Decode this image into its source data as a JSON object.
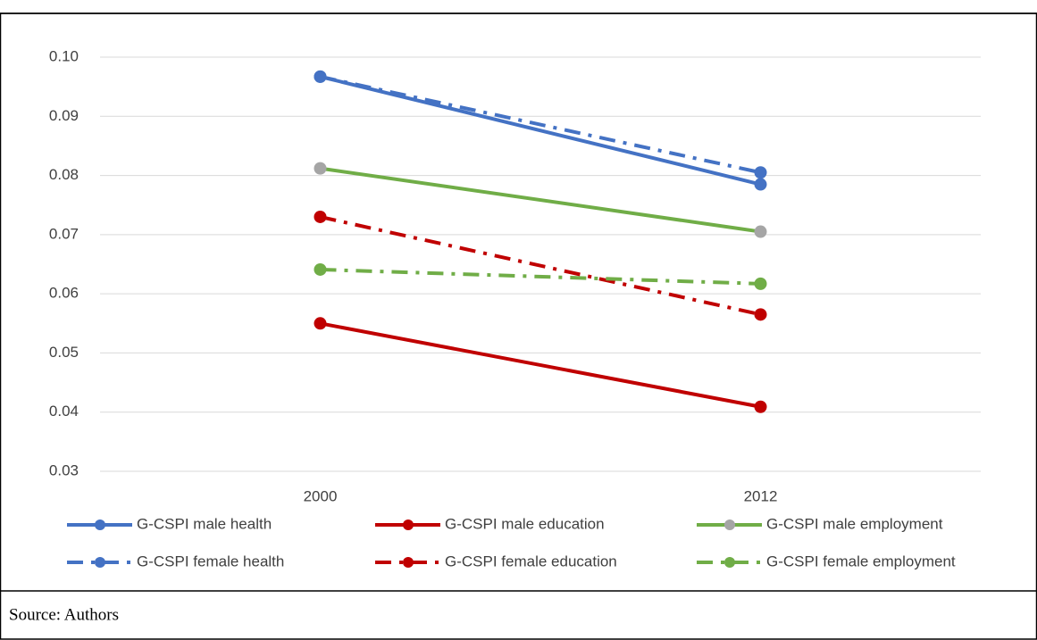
{
  "chart_data": {
    "type": "line",
    "categories": [
      "2000",
      "2012"
    ],
    "series": [
      {
        "name": "G-CSPI male health",
        "color": "#4472c4",
        "marker_color": "#4472c4",
        "dash": "solid",
        "values": [
          0.0967,
          0.0785
        ]
      },
      {
        "name": "G-CSPI male education",
        "color": "#c00000",
        "marker_color": "#c00000",
        "dash": "solid",
        "values": [
          0.055,
          0.0409
        ]
      },
      {
        "name": "G-CSPI male employment",
        "color": "#70ad47",
        "marker_color": "#a5a5a5",
        "dash": "solid",
        "values": [
          0.0812,
          0.0705
        ]
      },
      {
        "name": "G-CSPI female health",
        "color": "#4472c4",
        "marker_color": "#4472c4",
        "dash": "dashdot",
        "values": [
          0.0967,
          0.0805
        ]
      },
      {
        "name": "G-CSPI female education",
        "color": "#c00000",
        "marker_color": "#c00000",
        "dash": "dashdot",
        "values": [
          0.073,
          0.0565
        ]
      },
      {
        "name": "G-CSPI female employment",
        "color": "#70ad47",
        "marker_color": "#70ad47",
        "dash": "dashdot",
        "values": [
          0.0641,
          0.0617
        ]
      }
    ],
    "ylim": [
      0.03,
      0.1
    ],
    "yticks": [
      0.03,
      0.04,
      0.05,
      0.06,
      0.07,
      0.08,
      0.09,
      {
        "value": 0.1,
        "label": "0.10"
      }
    ],
    "grid": true,
    "legend": "bottom",
    "source": "Source: Authors"
  }
}
